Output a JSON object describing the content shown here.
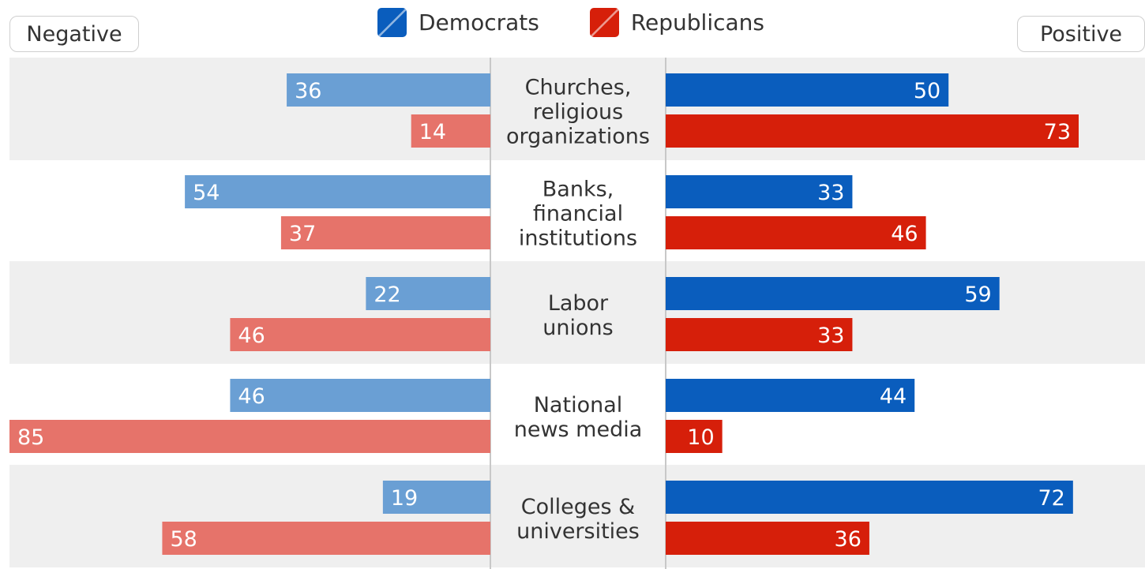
{
  "axis_labels": {
    "left": "Negative",
    "right": "Positive"
  },
  "legend": [
    {
      "name": "Democrats",
      "color": "#0a5dbd"
    },
    {
      "name": "Republicans",
      "color": "#d61f0a"
    }
  ],
  "colors": {
    "dem_positive": "#0a5dbd",
    "rep_positive": "#d61f0a",
    "dem_negative": "#6a9fd4",
    "rep_negative": "#e6736a",
    "row_shade": "#efefef",
    "center_line": "#c8c8c8"
  },
  "chart_data": {
    "type": "bar",
    "orientation": "horizontal-diverging",
    "categories": [
      [
        "Churches,",
        "religious",
        "organizations"
      ],
      [
        "Banks,",
        "financial",
        "institutions"
      ],
      [
        "Labor",
        "unions"
      ],
      [
        "National",
        "news media"
      ],
      [
        "Colleges &",
        "universities"
      ]
    ],
    "series": [
      {
        "name": "Democrats",
        "side": "Negative",
        "values": [
          36,
          54,
          22,
          46,
          19
        ]
      },
      {
        "name": "Republicans",
        "side": "Negative",
        "values": [
          14,
          37,
          46,
          85,
          58
        ]
      },
      {
        "name": "Democrats",
        "side": "Positive",
        "values": [
          50,
          33,
          59,
          44,
          72
        ]
      },
      {
        "name": "Republicans",
        "side": "Positive",
        "values": [
          73,
          46,
          33,
          10,
          36
        ]
      }
    ],
    "xlim": [
      0,
      85
    ],
    "grid": false,
    "legend_position": "top-center"
  }
}
